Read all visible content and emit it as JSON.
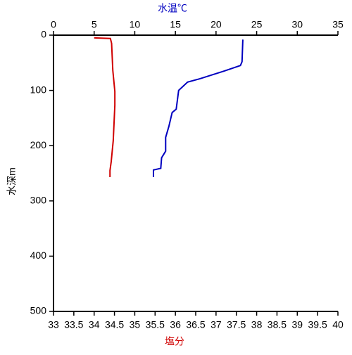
{
  "chart_data": {
    "type": "profile",
    "xlabel": "塩分",
    "x2label": "水温℃",
    "ylabel": "水深m",
    "xlim": [
      33,
      40
    ],
    "xticks": [
      33,
      33.5,
      34,
      34.5,
      35,
      35.5,
      36,
      36.5,
      37,
      37.5,
      38,
      38.5,
      39,
      39.5,
      40
    ],
    "x2lim": [
      0,
      35
    ],
    "x2ticks": [
      0,
      5,
      10,
      15,
      20,
      25,
      30,
      35
    ],
    "ylim": [
      0,
      500
    ],
    "yticks": [
      0,
      100,
      200,
      300,
      400,
      500
    ],
    "y_inverted": true,
    "series": [
      {
        "color": "#0000c0",
        "axis": "x2",
        "x": [
          23.3,
          23.2,
          23.0,
          21.0,
          18.0,
          16.5,
          15.4,
          15.1,
          14.6,
          14.2,
          13.8,
          13.8,
          13.3,
          13.2,
          12.3,
          12.3
        ],
        "y": [
          8,
          48,
          55,
          65,
          79,
          85,
          100,
          134,
          140,
          165,
          185,
          210,
          222,
          241,
          244,
          257
        ]
      },
      {
        "color": "#d00000",
        "axis": "x",
        "x": [
          34.0,
          34.4,
          34.43,
          34.46,
          34.51,
          34.51,
          34.47,
          34.42,
          34.39,
          34.39
        ],
        "y": [
          5,
          6,
          15,
          64,
          102,
          127,
          191,
          229,
          245,
          257
        ]
      }
    ]
  }
}
